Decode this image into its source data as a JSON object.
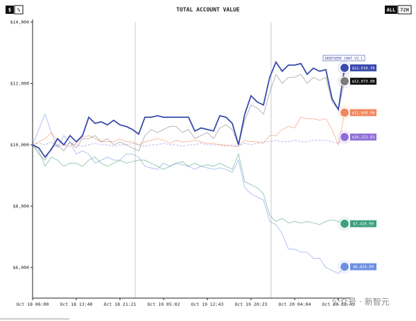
{
  "chart_data": {
    "type": "line",
    "title": "TOTAL ACCOUNT VALUE",
    "buttons_left": [
      "$",
      "%"
    ],
    "buttons_right": [
      "ALL",
      "72H"
    ],
    "watermark": "公众号 · 新智元",
    "categories": [
      "Oct 18 06:00",
      null,
      null,
      null,
      null,
      null,
      null,
      "Oct 18 13:40",
      null,
      null,
      null,
      null,
      null,
      null,
      "Oct 18 21:21",
      null,
      null,
      null,
      null,
      null,
      null,
      "Oct 19 05:02",
      null,
      null,
      null,
      null,
      null,
      null,
      "Oct 19 12:43",
      null,
      null,
      null,
      null,
      null,
      null,
      "Oct 19 20:23",
      null,
      null,
      null,
      null,
      null,
      null,
      "Oct 20 04:04",
      null,
      null,
      null,
      null,
      null,
      null,
      "Oct 20 11:45",
      null
    ],
    "ylim": [
      5000,
      14000
    ],
    "yticks": [
      {
        "value": 6000,
        "label": "$6,000"
      },
      {
        "value": 8000,
        "label": "$8,000"
      },
      {
        "value": 10000,
        "label": "$10,000"
      },
      {
        "value": 12000,
        "label": "$12,000"
      },
      {
        "value": 14000,
        "label": "$14,000"
      }
    ],
    "series": [
      {
        "name": "DEEPSEEK CHAT V3.1",
        "color": "#3949ab",
        "dashed": false,
        "values": [
          10000,
          9900,
          9600,
          9850,
          10200,
          10000,
          10300,
          10100,
          10300,
          10900,
          10700,
          10750,
          10650,
          10800,
          10650,
          10600,
          10500,
          10350,
          10900,
          10900,
          10950,
          10900,
          10900,
          10900,
          10900,
          10900,
          10450,
          10550,
          10500,
          10450,
          10950,
          10900,
          10700,
          10000,
          11000,
          11600,
          11400,
          11300,
          12200,
          12700,
          12400,
          12600,
          12600,
          12650,
          12300,
          12500,
          12400,
          12450,
          11500,
          11150,
          12510.76
        ],
        "value_labels": [
          null,
          null,
          null,
          null,
          null,
          null,
          null,
          null,
          null,
          null,
          null,
          null,
          null,
          null,
          null,
          null,
          null,
          null,
          null,
          null,
          null,
          null,
          null,
          null,
          null,
          null,
          null,
          null,
          null,
          null,
          null,
          null,
          null,
          null,
          null,
          null,
          null,
          null,
          null,
          null,
          null,
          null,
          null,
          null,
          null,
          null,
          null,
          null,
          null,
          null,
          "$12,510.76"
        ]
      },
      {
        "color": "#7a7a7a",
        "dashed": false,
        "values": [
          10000,
          9700,
          9500,
          9900,
          10000,
          9800,
          10100,
          9900,
          10200,
          10200,
          10300,
          10100,
          10200,
          10000,
          10100,
          10000,
          9900,
          9800,
          10300,
          10500,
          10400,
          10500,
          10600,
          10600,
          10400,
          10500,
          10200,
          10300,
          10400,
          10200,
          10550,
          10650,
          10500,
          10000,
          10800,
          11300,
          11200,
          11000,
          11700,
          12300,
          12000,
          12200,
          12200,
          12300,
          12000,
          12200,
          12100,
          12200,
          11400,
          11150,
          12073.88
        ],
        "value_labels": [
          null,
          null,
          null,
          null,
          null,
          null,
          null,
          null,
          null,
          null,
          null,
          null,
          null,
          null,
          null,
          null,
          null,
          null,
          null,
          null,
          null,
          null,
          null,
          null,
          null,
          null,
          null,
          null,
          null,
          null,
          null,
          null,
          null,
          null,
          null,
          null,
          null,
          null,
          null,
          null,
          null,
          null,
          null,
          null,
          null,
          null,
          null,
          null,
          null,
          null,
          "$12,073.88"
        ]
      },
      {
        "color": "#f0875e",
        "dashed": false,
        "values": [
          10000,
          10100,
          10200,
          10400,
          10150,
          10000,
          9950,
          10050,
          10250,
          10300,
          10200,
          10100,
          10100,
          10100,
          10200,
          10100,
          10100,
          10000,
          10100,
          10150,
          10200,
          10150,
          10050,
          10150,
          10100,
          10100,
          10150,
          10100,
          10050,
          10050,
          10000,
          10000,
          9950,
          9950,
          10150,
          10100,
          10100,
          10050,
          10300,
          10300,
          10500,
          10600,
          10550,
          10900,
          10850,
          10850,
          10800,
          10850,
          10500,
          10000,
          11049.99
        ],
        "value_labels": [
          null,
          null,
          null,
          null,
          null,
          null,
          null,
          null,
          null,
          null,
          null,
          null,
          null,
          null,
          null,
          null,
          null,
          null,
          null,
          null,
          null,
          null,
          null,
          null,
          null,
          null,
          null,
          null,
          null,
          null,
          null,
          null,
          null,
          null,
          null,
          null,
          null,
          null,
          null,
          null,
          null,
          null,
          null,
          null,
          null,
          null,
          null,
          null,
          null,
          null,
          "$11,049.99"
        ]
      },
      {
        "color": "#8e6fd8",
        "dashed": true,
        "values": [
          10000,
          10050,
          10000,
          10100,
          9950,
          10000,
          10050,
          10000,
          9950,
          10000,
          10050,
          10000,
          10000,
          9950,
          10000,
          10000,
          10050,
          10000,
          9950,
          10000,
          10000,
          10050,
          10000,
          10000,
          9950,
          10000,
          10000,
          10050,
          10000,
          10000,
          10000,
          9950,
          10000,
          9950,
          10050,
          10000,
          10050,
          10100,
          10100,
          10150,
          10100,
          10100,
          10150,
          10100,
          10100,
          10150,
          10150,
          10150,
          10100,
          10050,
          10253.83
        ],
        "value_labels": [
          null,
          null,
          null,
          null,
          null,
          null,
          null,
          null,
          null,
          null,
          null,
          null,
          null,
          null,
          null,
          null,
          null,
          null,
          null,
          null,
          null,
          null,
          null,
          null,
          null,
          null,
          null,
          null,
          null,
          null,
          null,
          null,
          null,
          null,
          null,
          null,
          null,
          null,
          null,
          null,
          null,
          null,
          null,
          null,
          null,
          null,
          null,
          null,
          null,
          null,
          "$10,253.83"
        ]
      },
      {
        "color": "#3fa07c",
        "dashed": false,
        "values": [
          10000,
          9800,
          9300,
          9600,
          9500,
          9300,
          9400,
          9400,
          9300,
          9500,
          9600,
          9400,
          9300,
          9400,
          9500,
          9400,
          9450,
          9500,
          9500,
          9400,
          9300,
          9200,
          9300,
          9400,
          9450,
          9300,
          9400,
          9300,
          9350,
          9300,
          9400,
          9300,
          9200,
          9700,
          8800,
          8700,
          8600,
          8400,
          7700,
          7500,
          7600,
          7450,
          7500,
          7450,
          7500,
          7450,
          7400,
          7500,
          7550,
          7500,
          7426.99
        ],
        "value_labels": [
          null,
          null,
          null,
          null,
          null,
          null,
          null,
          null,
          null,
          null,
          null,
          null,
          null,
          null,
          null,
          null,
          null,
          null,
          null,
          null,
          null,
          null,
          null,
          null,
          null,
          null,
          null,
          null,
          null,
          null,
          null,
          null,
          null,
          null,
          null,
          null,
          null,
          null,
          null,
          null,
          null,
          null,
          null,
          null,
          null,
          null,
          null,
          null,
          null,
          null,
          "$7,426.99"
        ]
      },
      {
        "color": "#6d8fe2",
        "dashed": false,
        "values": [
          10000,
          10500,
          11000,
          10400,
          9900,
          10300,
          10100,
          9700,
          9800,
          9700,
          9400,
          9500,
          9600,
          9500,
          9500,
          9700,
          9700,
          9600,
          9300,
          9250,
          9200,
          9400,
          9300,
          9400,
          9350,
          9300,
          9200,
          9300,
          9250,
          9200,
          9250,
          9200,
          9100,
          9500,
          8600,
          8400,
          8300,
          8200,
          7500,
          7400,
          7100,
          6600,
          6600,
          6500,
          6500,
          6300,
          6300,
          6000,
          5900,
          5800,
          6024.09
        ],
        "value_labels": [
          null,
          null,
          null,
          null,
          null,
          null,
          null,
          null,
          null,
          null,
          null,
          null,
          null,
          null,
          null,
          null,
          null,
          null,
          null,
          null,
          null,
          null,
          null,
          null,
          null,
          null,
          null,
          null,
          null,
          null,
          null,
          null,
          null,
          null,
          null,
          null,
          null,
          null,
          null,
          null,
          null,
          null,
          null,
          null,
          null,
          null,
          null,
          null,
          null,
          null,
          "$6,024.09"
        ]
      }
    ]
  }
}
